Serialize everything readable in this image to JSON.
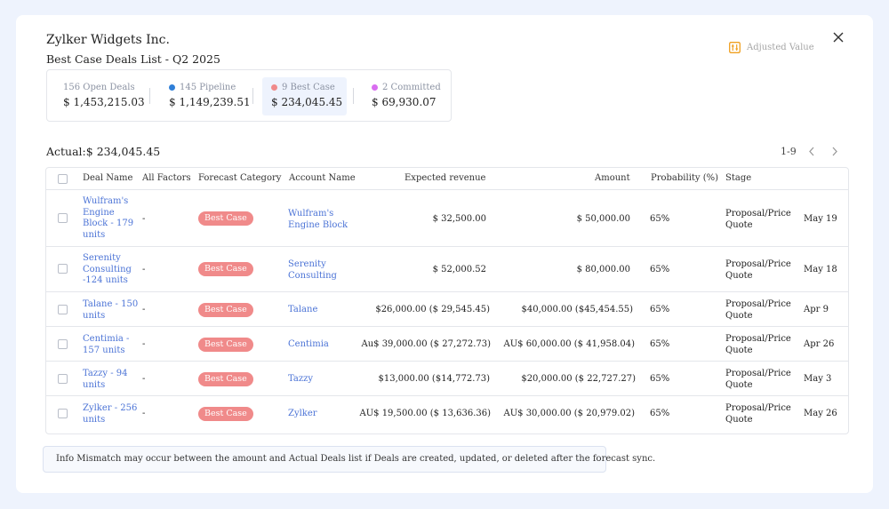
{
  "header": {
    "company": "Zylker Widgets Inc.",
    "subtitle": "Best Case Deals List - Q2 2025",
    "adjusted_label": "Adjusted Value"
  },
  "summary": [
    {
      "label": "156 Open Deals",
      "value": "$ 1,453,215.03",
      "dot_color": ""
    },
    {
      "label": "145 Pipeline",
      "value": "$ 1,149,239.51",
      "dot_color": "#2f7fd8"
    },
    {
      "label": "9 Best Case",
      "value": "$ 234,045.45",
      "dot_color": "#f08a8a"
    },
    {
      "label": "2 Committed",
      "value": "$ 69,930.07",
      "dot_color": "#d96df0"
    }
  ],
  "actual": "Actual:$ 234,045.45",
  "pagination": "1-9",
  "table": {
    "headers": [
      "Deal Name",
      "All Factors",
      "Forecast Category",
      "Account Name",
      "Expected revenue",
      "Amount",
      "Probability (%)",
      "Stage"
    ],
    "rows": [
      {
        "deal": "Wulfram's Engine Block - 179 units",
        "factors": "-",
        "category": "Best Case",
        "account": "Wulfram's Engine Block",
        "expected": "$ 32,500.00",
        "amount": "$ 50,000.00",
        "probability": "65%",
        "stage": "Proposal/Price Quote",
        "date": "May 19"
      },
      {
        "deal": "Serenity Consulting -124 units",
        "factors": "-",
        "category": "Best Case",
        "account": "Serenity Consulting",
        "expected": "$ 52,000.52",
        "amount": "$ 80,000.00",
        "probability": "65%",
        "stage": "Proposal/Price Quote",
        "date": "May 18"
      },
      {
        "deal": "Talane - 150 units",
        "factors": "-",
        "category": "Best Case",
        "account": "Talane",
        "expected": "$26,000.00 ($ 29,545.45)",
        "amount": "$40,000.00 ($45,454.55)",
        "probability": "65%",
        "stage": "Proposal/Price Quote",
        "date": "Apr 9"
      },
      {
        "deal": "Centimia - 157 units",
        "factors": "-",
        "category": "Best Case",
        "account": "Centimia",
        "expected": "Au$ 39,000.00 ($ 27,272.73)",
        "amount": "AU$ 60,000.00 ($ 41,958.04)",
        "probability": "65%",
        "stage": "Proposal/Price Quote",
        "date": "Apr 26"
      },
      {
        "deal": "Tazzy - 94 units",
        "factors": "-",
        "category": "Best Case",
        "account": "Tazzy",
        "expected": "$13,000.00 ($14,772.73)",
        "amount": "$20,000.00 ($ 22,727.27)",
        "probability": "65%",
        "stage": "Proposal/Price Quote",
        "date": "May 3"
      },
      {
        "deal": "Zylker - 256 units",
        "factors": "-",
        "category": "Best Case",
        "account": "Zylker",
        "expected": "AU$ 19,500.00 ($ 13,636.36)",
        "amount": "AU$ 30,000.00 ($ 20,979.02)",
        "probability": "65%",
        "stage": "Proposal/Price Quote",
        "date": "May 26"
      }
    ]
  },
  "info": "Info Mismatch may occur between the amount and Actual Deals list if Deals are created, updated, or deleted after the forecast sync.",
  "colors": {
    "link": "#4b73d6",
    "badge": "#f08a8a",
    "accent": "#f0a020"
  }
}
